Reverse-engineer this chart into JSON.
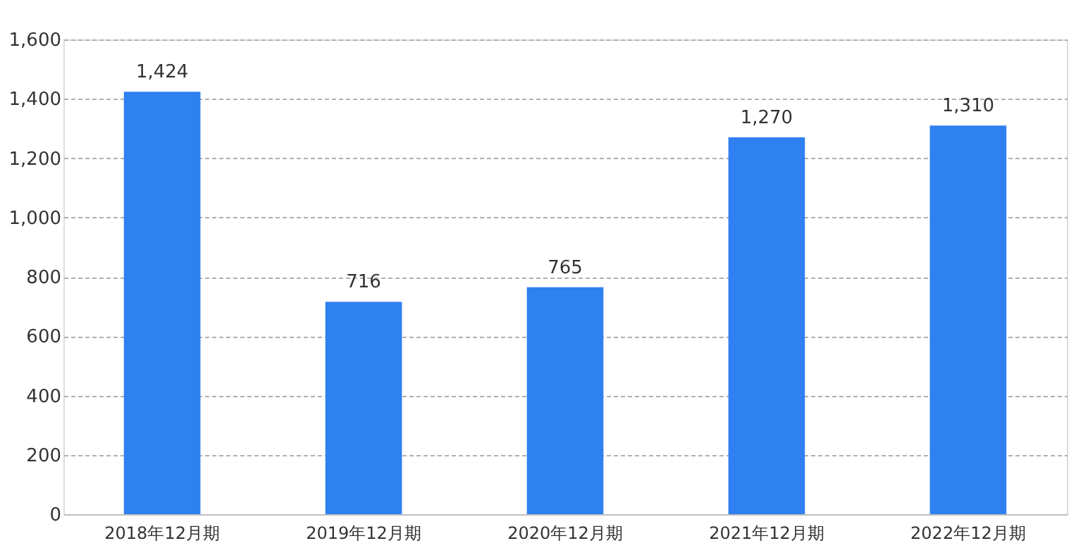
{
  "chart_data": {
    "type": "bar",
    "categories": [
      "2018年12月期",
      "2019年12月期",
      "2020年12月期",
      "2021年12月期",
      "2022年12月期"
    ],
    "values": [
      1424,
      716,
      765,
      1270,
      1310
    ],
    "value_labels": [
      "1,424",
      "716",
      "765",
      "1,270",
      "1,310"
    ],
    "color": "#2f80f0",
    "ylim": [
      0,
      1600
    ],
    "yticks": [
      0,
      200,
      400,
      600,
      800,
      {
        "value": 1000,
        "label": "1,000"
      },
      {
        "value": 1200,
        "label": "1,200"
      },
      {
        "value": 1400,
        "label": "1,400"
      },
      {
        "value": 1600,
        "label": "1,600"
      }
    ],
    "grid": "y"
  }
}
